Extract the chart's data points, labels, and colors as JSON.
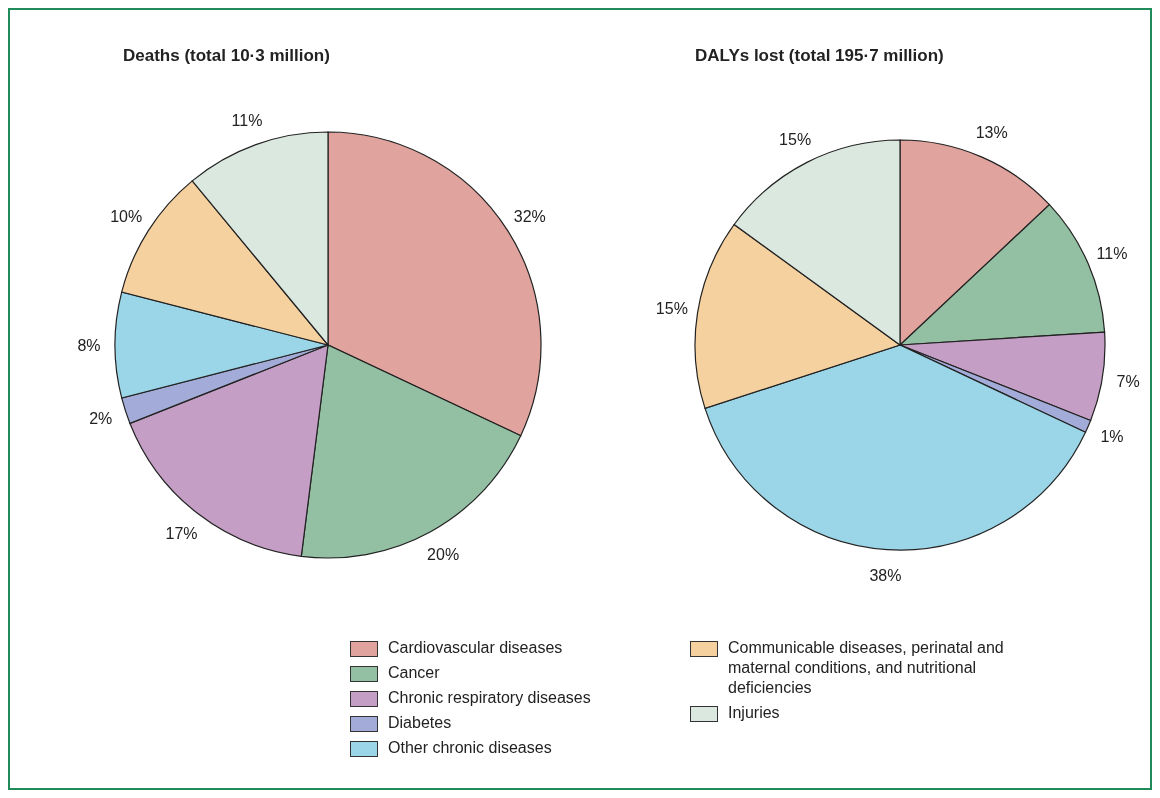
{
  "chart_data": [
    {
      "type": "pie",
      "title": "Deaths (total 10·3 million)",
      "categories": [
        "Cardiovascular diseases",
        "Cancer",
        "Chronic respiratory diseases",
        "Diabetes",
        "Other chronic diseases",
        "Communicable diseases, perinatal and maternal conditions, and nutritional deficiencies",
        "Injuries"
      ],
      "values": [
        32,
        20,
        17,
        2,
        8,
        10,
        11
      ],
      "colors": [
        "#e0a39d",
        "#93bfa3",
        "#c59ec5",
        "#a3acd8",
        "#9bd5e8",
        "#f6d1a0",
        "#dbe8e0"
      ],
      "value_labels": [
        "32%",
        "20%",
        "17%",
        "2%",
        "8%",
        "10%",
        "11%"
      ],
      "legend": "bottom"
    },
    {
      "type": "pie",
      "title": "DALYs lost (total 195·7 million)",
      "categories": [
        null,
        null,
        null,
        null,
        null,
        null,
        null
      ],
      "values": [
        13,
        11,
        7,
        1,
        38,
        15,
        15
      ],
      "colors": [
        "#e0a39d",
        "#93bfa3",
        "#c59ec5",
        "#a3acd8",
        "#9bd5e8",
        "#f6d1a0",
        "#dbe8e0"
      ],
      "value_labels": [
        "13%",
        "11%",
        "7%",
        "1%",
        "38%",
        "15%",
        "15%"
      ]
    }
  ]
}
